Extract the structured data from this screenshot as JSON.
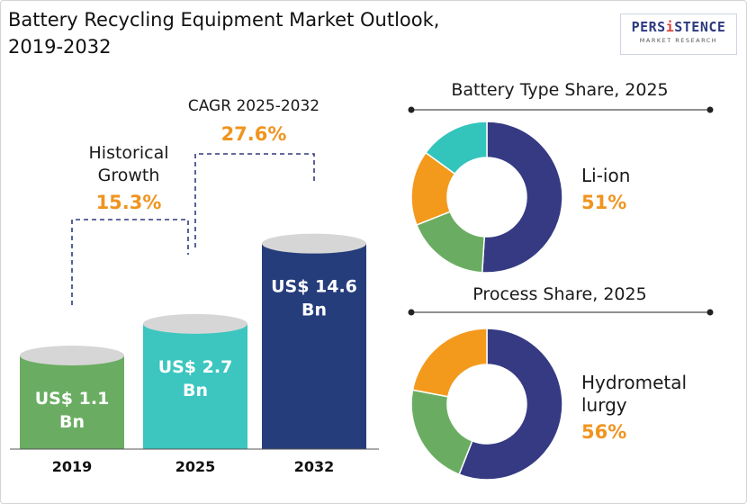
{
  "title_line1": "Battery Recycling Equipment Market Outlook,",
  "title_line2": "2019-2032",
  "logo": {
    "prefix": "PERS",
    "accent": "i",
    "suffix": "STENCE",
    "tagline": "MARKET RESEARCH"
  },
  "annotations": {
    "historical_line1": "Historical",
    "historical_line2": "Growth",
    "historical_value": "15.3%",
    "cagr_label": "CAGR 2025-2032",
    "cagr_value": "27.6%"
  },
  "chart_data": [
    {
      "type": "bar",
      "categories": [
        "2019",
        "2025",
        "2032"
      ],
      "values": [
        1.1,
        2.7,
        14.6
      ],
      "value_labels": [
        [
          "US$ 1.1",
          "Bn"
        ],
        [
          "US$ 2.7",
          "Bn"
        ],
        [
          "US$ 14.6",
          "Bn"
        ]
      ],
      "unit": "US$ Bn",
      "colors": [
        "#6aad62",
        "#3cc6bf",
        "#263d7c"
      ],
      "cap_color": "#d6d6d6"
    },
    {
      "type": "pie",
      "title": "Battery Type Share, 2025",
      "highlight_label": "Li-ion",
      "highlight_value": "51%",
      "slices": [
        {
          "value": 51,
          "color": "#353a83"
        },
        {
          "value": 18,
          "color": "#6aad62"
        },
        {
          "value": 16,
          "color": "#f39a1d"
        },
        {
          "value": 15,
          "color": "#33c4bb"
        }
      ]
    },
    {
      "type": "pie",
      "title": "Process Share, 2025",
      "highlight_label_lines": [
        "Hydrometal",
        "lurgy"
      ],
      "highlight_value": "56%",
      "slices": [
        {
          "value": 56,
          "color": "#353a83"
        },
        {
          "value": 22,
          "color": "#6aad62"
        },
        {
          "value": 22,
          "color": "#f39a1d"
        }
      ]
    }
  ]
}
